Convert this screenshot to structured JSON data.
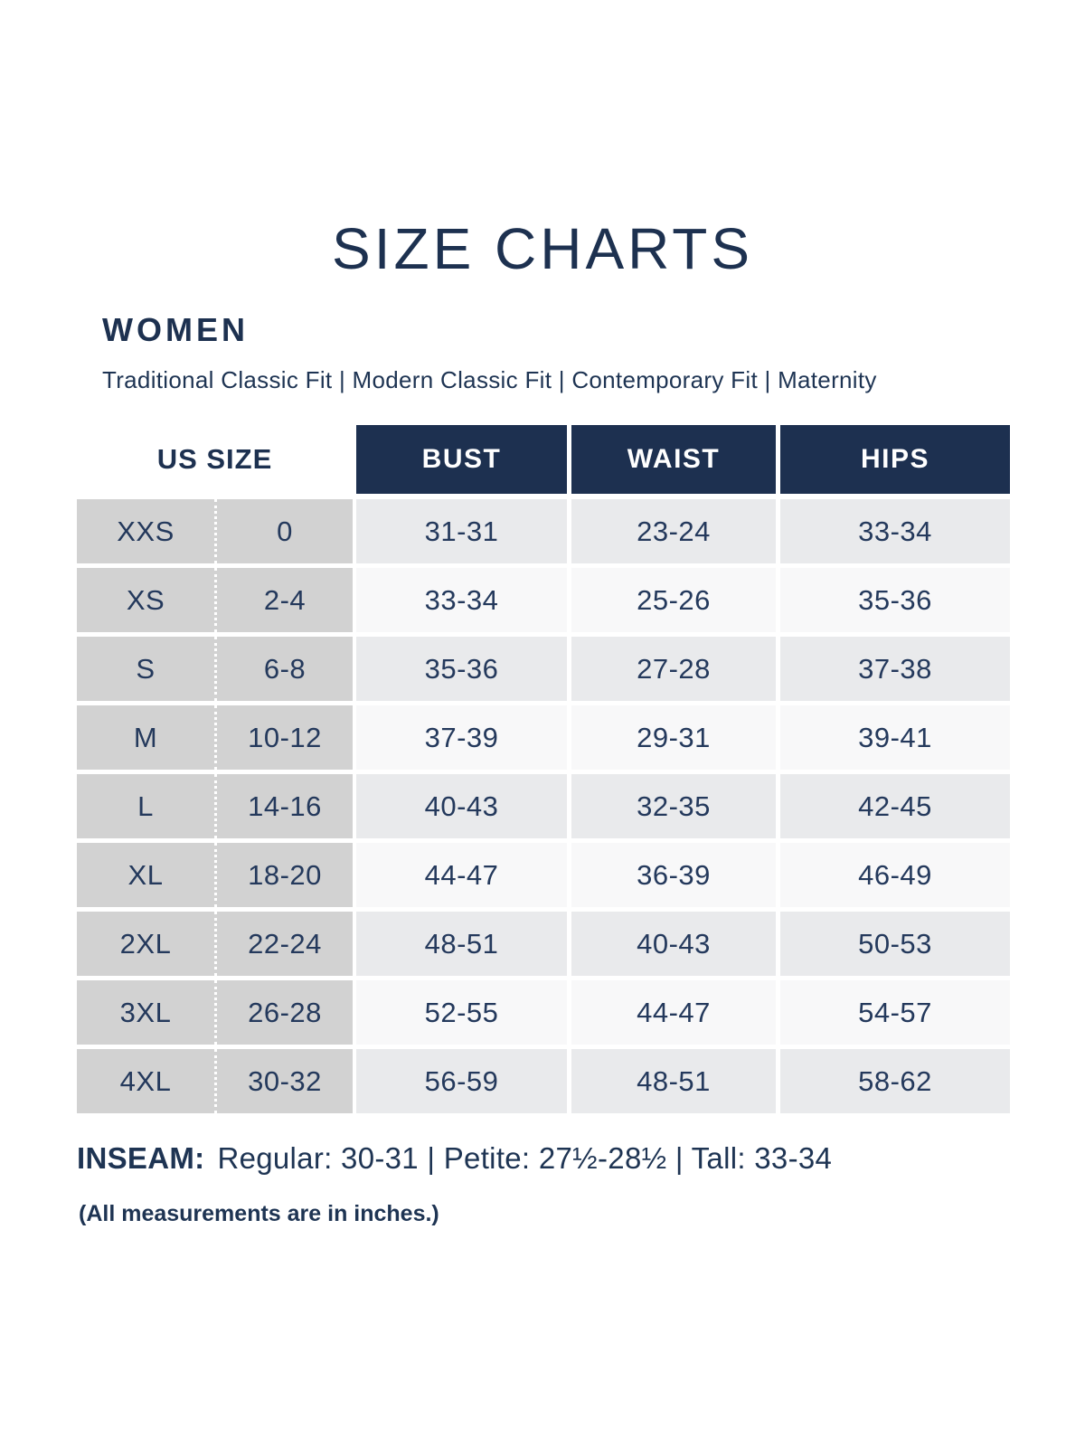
{
  "page": {
    "title": "SIZE CHARTS",
    "section_heading": "WOMEN",
    "fit_types": "Traditional Classic Fit  |  Modern Classic Fit  |  Contemporary Fit  |  Maternity"
  },
  "table": {
    "columns": {
      "us_size": "US SIZE",
      "bust": "BUST",
      "waist": "WAIST",
      "hips": "HIPS"
    },
    "rows": [
      {
        "size": "XXS",
        "us": "0",
        "bust": "31-31",
        "waist": "23-24",
        "hips": "33-34"
      },
      {
        "size": "XS",
        "us": "2-4",
        "bust": "33-34",
        "waist": "25-26",
        "hips": "35-36"
      },
      {
        "size": "S",
        "us": "6-8",
        "bust": "35-36",
        "waist": "27-28",
        "hips": "37-38"
      },
      {
        "size": "M",
        "us": "10-12",
        "bust": "37-39",
        "waist": "29-31",
        "hips": "39-41"
      },
      {
        "size": "L",
        "us": "14-16",
        "bust": "40-43",
        "waist": "32-35",
        "hips": "42-45"
      },
      {
        "size": "XL",
        "us": "18-20",
        "bust": "44-47",
        "waist": "36-39",
        "hips": "46-49"
      },
      {
        "size": "2XL",
        "us": "22-24",
        "bust": "48-51",
        "waist": "40-43",
        "hips": "50-53"
      },
      {
        "size": "3XL",
        "us": "26-28",
        "bust": "52-55",
        "waist": "44-47",
        "hips": "54-57"
      },
      {
        "size": "4XL",
        "us": "30-32",
        "bust": "56-59",
        "waist": "48-51",
        "hips": "58-62"
      }
    ]
  },
  "footer": {
    "inseam_label": "INSEAM:",
    "inseam_text": "Regular: 30-31  |  Petite: 27½-28½  |  Tall: 33-34",
    "note": "(All measurements are in inches.)"
  },
  "colors": {
    "header_navy": "#1d3050",
    "text_navy": "#1e3453",
    "size_column_gray": "#d2d2d2",
    "row_gray": "#e9eaec",
    "row_light": "#f8f8f9"
  }
}
